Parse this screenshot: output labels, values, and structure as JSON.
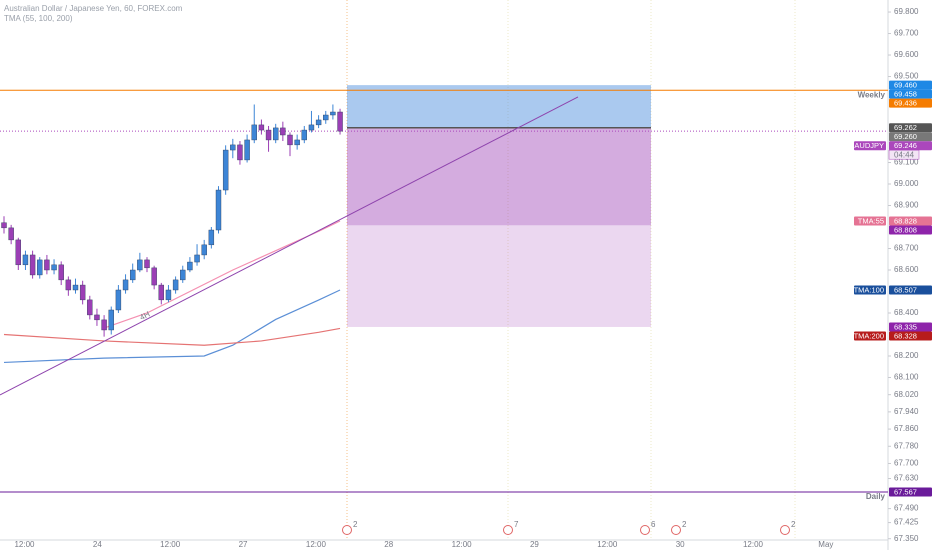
{
  "chart_data": {
    "type": "candlestick",
    "title": "Australian Dollar / Japanese Yen, 60, FOREX.com",
    "subtitle": "TMA (55, 100, 200)",
    "up_color": "#3d85d6",
    "down_color": "#9b3fb5",
    "ylim": [
      67.344,
      69.856
    ],
    "yticks": [
      {
        "value": 69.8,
        "label": "69.800"
      },
      {
        "value": 69.7,
        "label": "69.700"
      },
      {
        "value": 69.6,
        "label": "69.600"
      },
      {
        "value": 69.5,
        "label": "69.500"
      },
      {
        "value": 69.1,
        "label": "69.100"
      },
      {
        "value": 69.0,
        "label": "69.000"
      },
      {
        "value": 68.9,
        "label": "68.900"
      },
      {
        "value": 68.7,
        "label": "68.700"
      },
      {
        "value": 68.6,
        "label": "68.600"
      },
      {
        "value": 68.4,
        "label": "68.400"
      },
      {
        "value": 68.2,
        "label": "68.200"
      },
      {
        "value": 68.1,
        "label": "68.100"
      },
      {
        "value": 68.02,
        "label": "68.020"
      },
      {
        "value": 67.94,
        "label": "67.940"
      },
      {
        "value": 67.86,
        "label": "67.860"
      },
      {
        "value": 67.78,
        "label": "67.780"
      },
      {
        "value": 67.7,
        "label": "67.700"
      },
      {
        "value": 67.63,
        "label": "67.630"
      },
      {
        "value": 67.49,
        "label": "67.490"
      },
      67.425,
      {
        "value": 67.35,
        "label": "67.350"
      }
    ],
    "time_labels": [
      "12:00",
      "24",
      "12:00",
      "27",
      "12:00",
      "28",
      "12:00",
      "29",
      "12:00",
      "30",
      "12:00",
      "May"
    ],
    "open": [
      68.82,
      68.796,
      68.74,
      68.624,
      68.67,
      68.577,
      68.647,
      68.6,
      68.624,
      68.554,
      68.507,
      68.53,
      68.461,
      68.391,
      68.368,
      68.321,
      68.414,
      68.507,
      68.554,
      68.6,
      68.647,
      68.61,
      68.53,
      68.461,
      68.507,
      68.554,
      68.6,
      68.637,
      68.67,
      68.717,
      68.786,
      68.972,
      69.158,
      69.182,
      69.112,
      69.205,
      69.275,
      69.251,
      69.205,
      69.261,
      69.228,
      69.182,
      69.205,
      69.251,
      69.275,
      69.298,
      69.321,
      69.335
    ],
    "high": [
      68.85,
      68.81,
      68.75,
      68.69,
      68.69,
      68.66,
      68.67,
      68.65,
      68.64,
      68.57,
      68.56,
      68.55,
      68.48,
      68.42,
      68.39,
      68.43,
      68.53,
      68.58,
      68.63,
      68.68,
      68.66,
      68.62,
      68.54,
      68.53,
      68.57,
      68.62,
      68.66,
      68.72,
      68.74,
      68.8,
      68.99,
      69.18,
      69.21,
      69.2,
      69.23,
      69.37,
      69.3,
      69.27,
      69.28,
      69.29,
      69.24,
      69.23,
      69.27,
      69.34,
      69.32,
      69.34,
      69.37,
      69.35
    ],
    "low": [
      68.77,
      68.72,
      68.6,
      68.6,
      68.56,
      68.56,
      68.58,
      68.58,
      68.53,
      68.48,
      68.49,
      68.44,
      68.37,
      68.34,
      68.29,
      68.3,
      68.4,
      68.49,
      68.54,
      68.59,
      68.59,
      68.51,
      68.44,
      68.45,
      68.49,
      68.54,
      68.59,
      68.62,
      68.65,
      68.7,
      68.77,
      68.95,
      69.12,
      69.09,
      69.1,
      69.19,
      69.23,
      69.15,
      69.19,
      69.2,
      69.13,
      69.16,
      69.19,
      69.24,
      69.26,
      69.28,
      69.3,
      69.23
    ],
    "close": [
      68.796,
      68.74,
      68.624,
      68.67,
      68.577,
      68.647,
      68.6,
      68.624,
      68.554,
      68.507,
      68.53,
      68.461,
      68.391,
      68.368,
      68.321,
      68.414,
      68.507,
      68.554,
      68.6,
      68.647,
      68.61,
      68.53,
      68.461,
      68.507,
      68.554,
      68.6,
      68.637,
      68.67,
      68.717,
      68.786,
      68.972,
      69.158,
      69.182,
      69.112,
      69.205,
      69.275,
      69.251,
      69.205,
      69.261,
      69.228,
      69.182,
      69.205,
      69.251,
      69.275,
      69.298,
      69.321,
      69.335,
      69.246
    ],
    "series": [
      {
        "name": "TMA:55",
        "color": "#f48fb1",
        "badge_color": "#e57394",
        "x": [
          14,
          20,
          26,
          32,
          38,
          44,
          47
        ],
        "values": [
          68.33,
          68.4,
          68.5,
          68.6,
          68.69,
          68.78,
          68.828
        ]
      },
      {
        "name": "TMA:100",
        "color": "#5b8fd6",
        "badge_color": "#1a4f9c",
        "x": [
          0,
          14,
          28,
          32,
          38,
          44,
          47
        ],
        "values": [
          68.17,
          68.19,
          68.2,
          68.25,
          68.37,
          68.46,
          68.507
        ]
      },
      {
        "name": "TMA:200",
        "color": "#e57373",
        "badge_color": "#b71c1c",
        "x": [
          0,
          14,
          28,
          36,
          44,
          47
        ],
        "values": [
          68.3,
          68.27,
          68.25,
          68.27,
          68.31,
          68.328
        ]
      }
    ],
    "symbol": {
      "name": "AUDJPY",
      "color": "#ab47bc",
      "countdown": "04:44"
    },
    "horizontal_lines": [
      {
        "name": "Weekly",
        "value": 69.436,
        "color": "#f57c00"
      },
      {
        "name": "Daily",
        "value": 67.567,
        "color": "#6a1b9a"
      }
    ],
    "trendline": {
      "label": "4H",
      "start": 68.019,
      "end": 69.405,
      "color": "#8e44ad"
    },
    "position": [
      {
        "value": 69.46,
        "label": "69.460",
        "color": "#1e88e5"
      },
      {
        "value": 69.262,
        "color": "#555555"
      },
      {
        "value": 68.808,
        "color": "#8e24aa"
      },
      {
        "value": 68.335,
        "color": "#8e24aa"
      }
    ],
    "extra_badges": [
      {
        "value": 69.458,
        "color": "#1e88e5"
      },
      {
        "value": 69.26,
        "label": "69.260",
        "color": "#787878"
      }
    ],
    "events": [
      "2",
      "7",
      "6",
      "2",
      "2"
    ]
  }
}
